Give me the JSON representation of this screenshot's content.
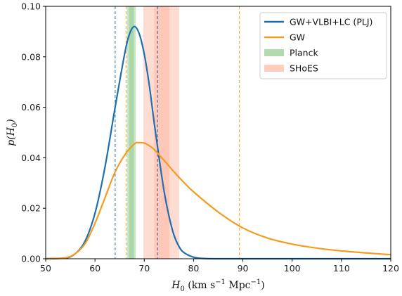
{
  "chart_data": {
    "type": "line",
    "xlabel": "H_0 (km s^-1 Mpc^-1)",
    "ylabel": "p(H_0)",
    "xlim": [
      50,
      120
    ],
    "ylim": [
      0,
      0.1
    ],
    "x_ticks": [
      "50",
      "60",
      "70",
      "80",
      "90",
      "100",
      "110",
      "120"
    ],
    "y_ticks": [
      "0.00",
      "0.02",
      "0.04",
      "0.06",
      "0.08",
      "0.10"
    ],
    "legend_position": "top-right",
    "series": [
      {
        "name": "GW+VLBI+LC (PLJ)",
        "color": "#1f6fae",
        "x": [
          50,
          54,
          56,
          58,
          60,
          62,
          64,
          66,
          67,
          68,
          69,
          70,
          71,
          72,
          73,
          74,
          75,
          76,
          77,
          78,
          80,
          82,
          85,
          90,
          120
        ],
        "y": [
          0,
          0.0003,
          0.002,
          0.007,
          0.018,
          0.036,
          0.059,
          0.081,
          0.089,
          0.092,
          0.089,
          0.081,
          0.069,
          0.054,
          0.04,
          0.027,
          0.017,
          0.0095,
          0.005,
          0.0025,
          0.0006,
          0.0001,
          0,
          0,
          0
        ]
      },
      {
        "name": "GW",
        "color": "#f39c1f",
        "x": [
          50,
          54,
          56,
          58,
          60,
          62,
          64,
          66,
          68,
          69,
          70,
          71,
          72,
          74,
          76,
          78,
          80,
          85,
          90,
          95,
          100,
          105,
          110,
          115,
          120
        ],
        "y": [
          0,
          0.0004,
          0.002,
          0.006,
          0.014,
          0.024,
          0.034,
          0.041,
          0.0455,
          0.046,
          0.0458,
          0.0448,
          0.0433,
          0.039,
          0.0345,
          0.0303,
          0.0265,
          0.0185,
          0.0122,
          0.0082,
          0.0058,
          0.0042,
          0.0031,
          0.0023,
          0.0016
        ]
      }
    ],
    "bands": [
      {
        "name": "Planck",
        "color": "#9fd19a",
        "x_inner": [
          66.9,
          67.9
        ],
        "x_outer": [
          66.5,
          68.3
        ]
      },
      {
        "name": "SHoES",
        "color": "#ffc0ad",
        "x_inner": [
          72.0,
          75.1
        ],
        "x_outer": [
          69.8,
          77.1
        ]
      }
    ],
    "vlines": [
      {
        "x": 64.1,
        "color": "#1f6fae"
      },
      {
        "x": 72.7,
        "color": "#1f6fae"
      },
      {
        "x": 66.3,
        "color": "#f39c1f"
      },
      {
        "x": 89.3,
        "color": "#f39c1f"
      }
    ]
  }
}
